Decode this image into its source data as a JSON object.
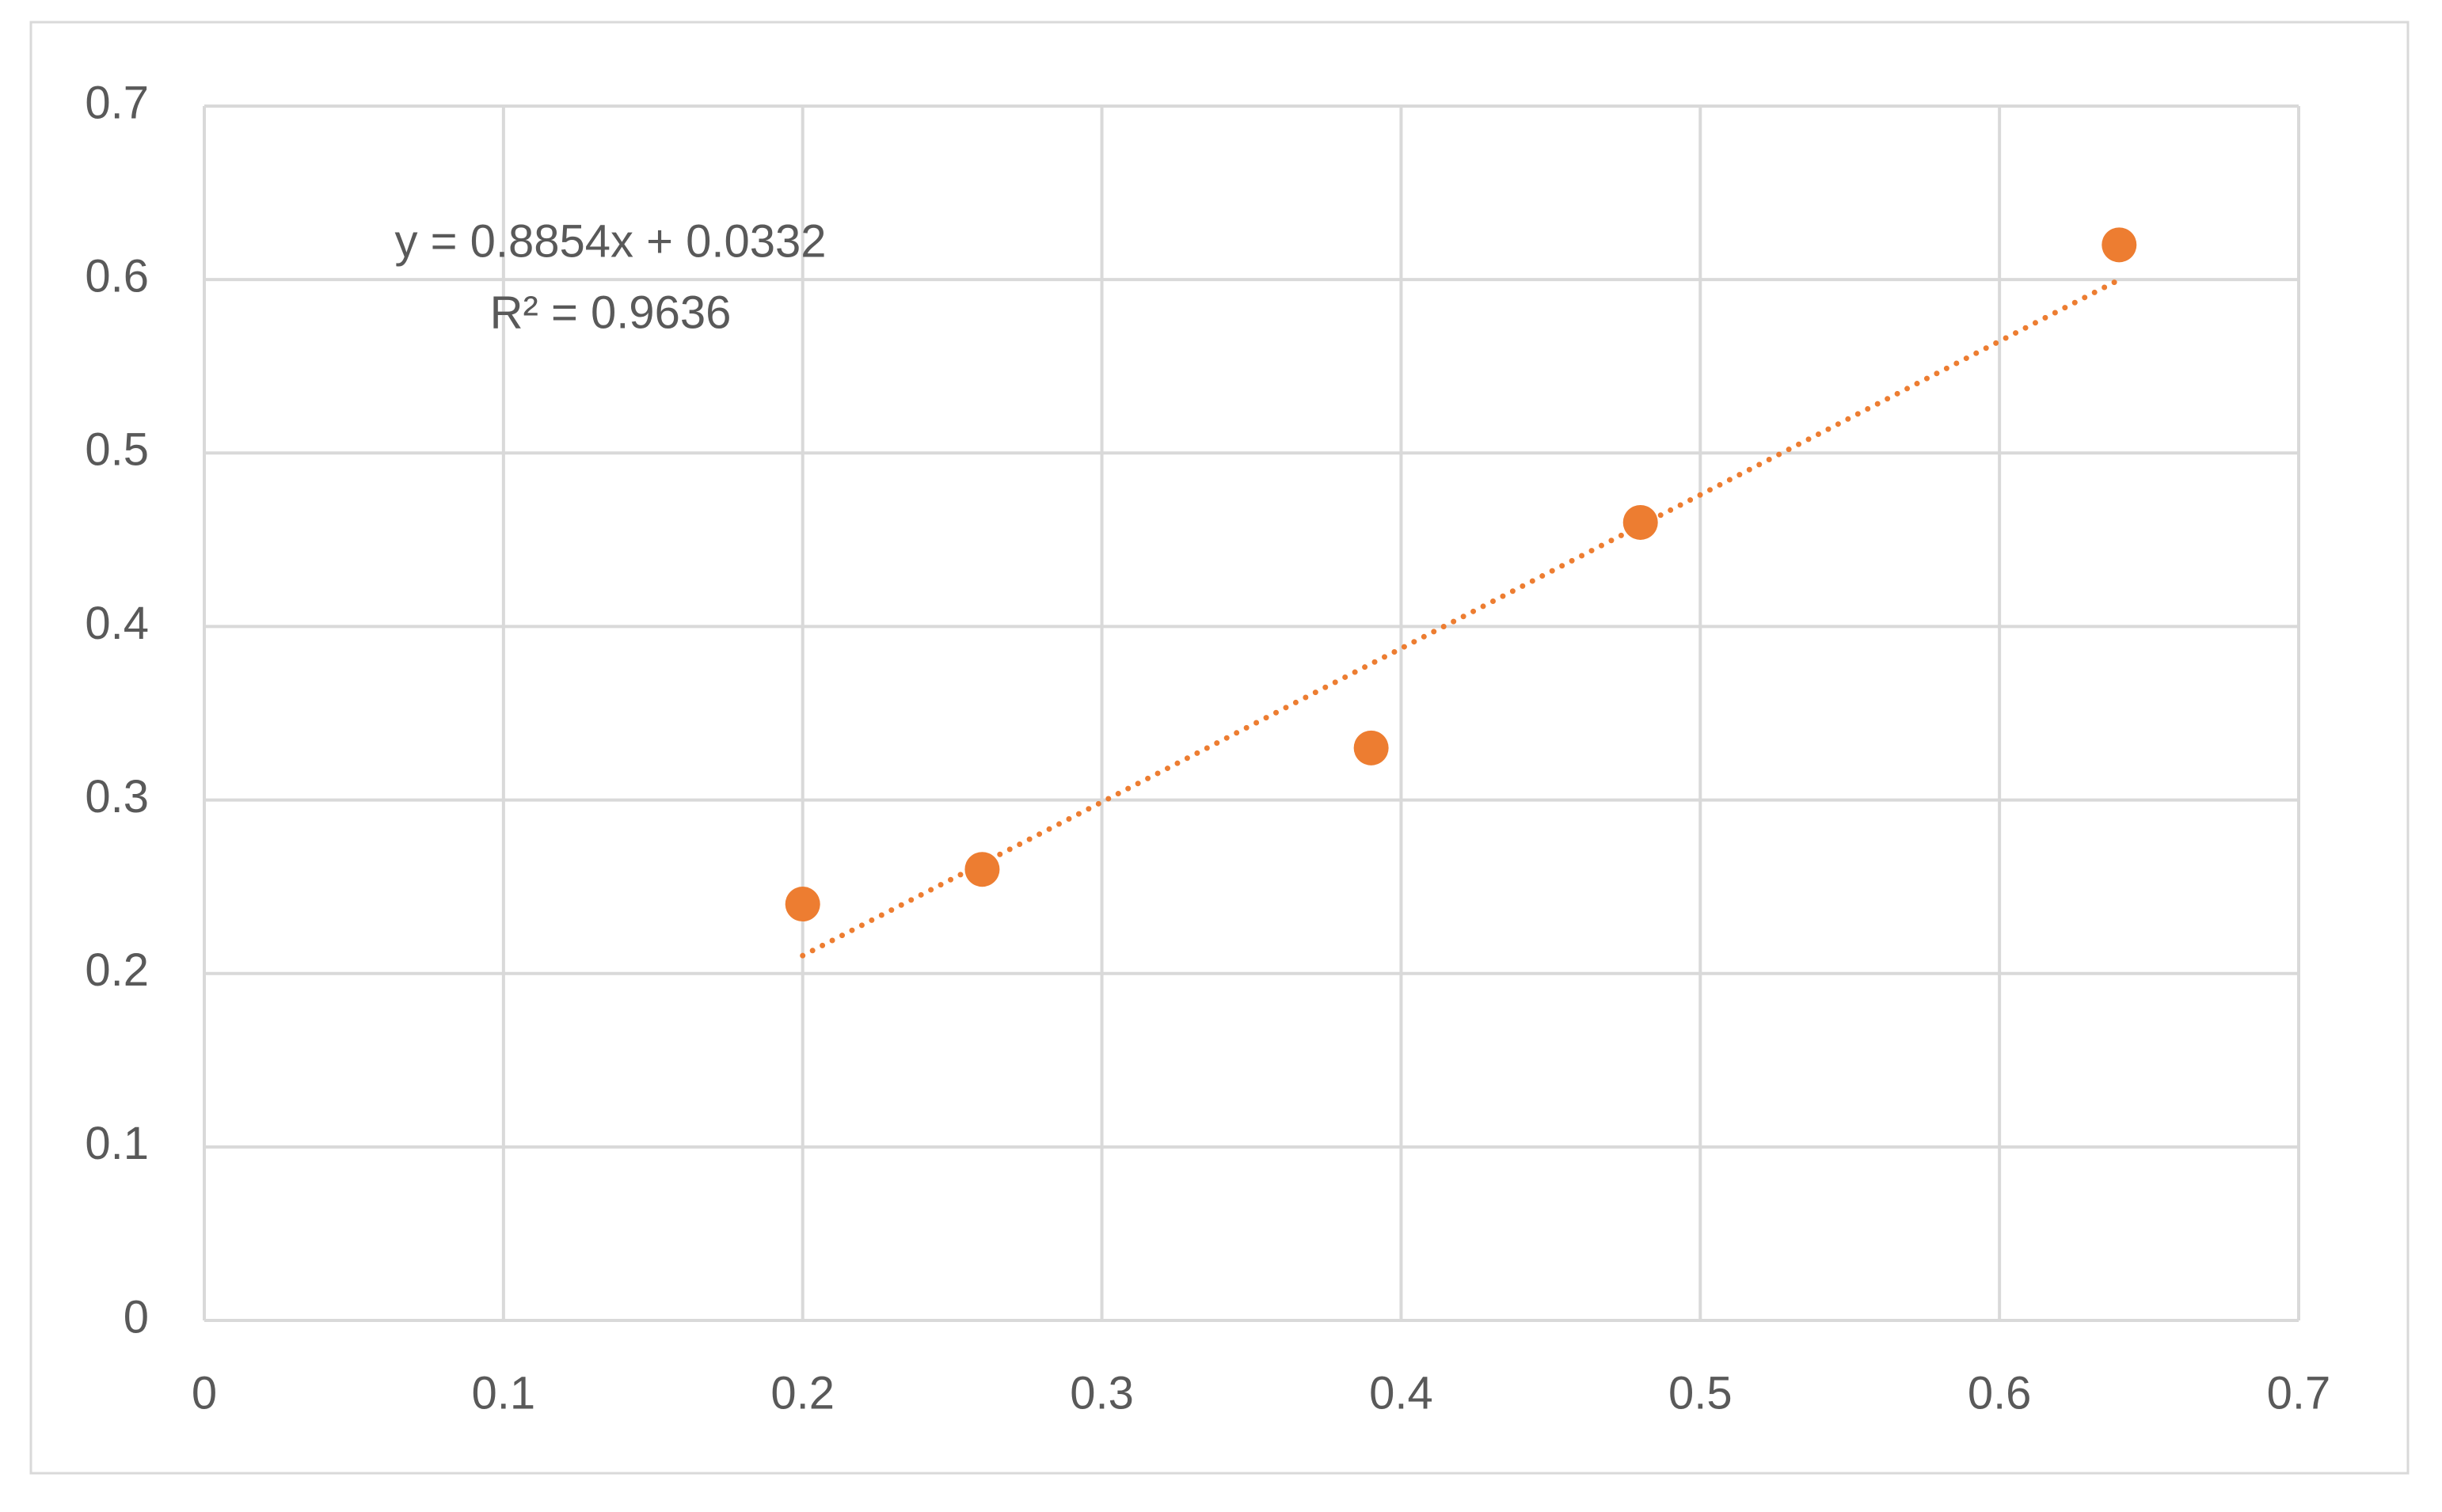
{
  "chart_data": {
    "type": "scatter",
    "x": [
      0.2,
      0.26,
      0.39,
      0.48,
      0.64
    ],
    "values": [
      0.24,
      0.26,
      0.33,
      0.46,
      0.62
    ],
    "color": "#ed7d31",
    "xlim": [
      0,
      0.7
    ],
    "xticks": [
      0,
      0.1,
      0.2,
      0.3,
      0.4,
      0.5,
      0.6,
      0.7
    ],
    "ylim": [
      0,
      0.7
    ],
    "yticks": [
      0,
      0.1,
      0.2,
      0.3,
      0.4,
      0.5,
      0.6,
      0.7
    ],
    "grid": true,
    "trendline": {
      "slope": 0.8854,
      "intercept": 0.0332,
      "style": "dotted",
      "color": "#ed7d31",
      "equation": "y = 0.8854x + 0.0332",
      "r2": "R² = 0.9636"
    }
  }
}
